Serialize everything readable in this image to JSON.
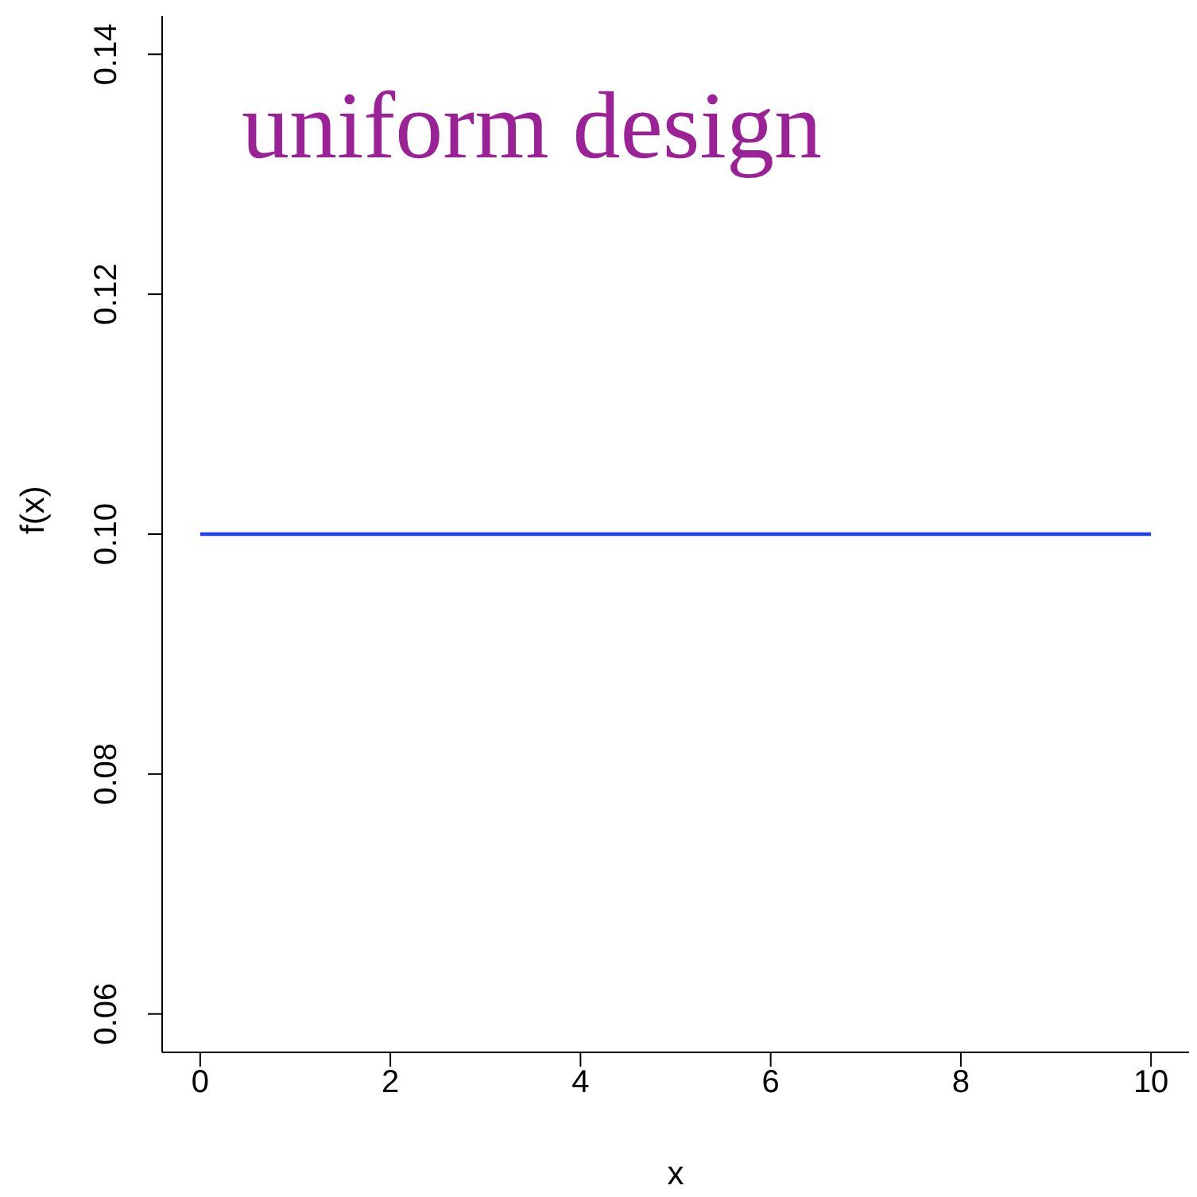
{
  "chart_data": {
    "type": "line",
    "xlabel": "x",
    "ylabel": "f(x)",
    "annotations": [
      "uniform design"
    ],
    "x": [
      0,
      10
    ],
    "series": [
      {
        "color": "#1f3ff0",
        "values": [
          0.1,
          0.1
        ]
      }
    ],
    "xlim": [
      -0.4,
      10.4
    ],
    "xticks": [
      0,
      2,
      4,
      6,
      8,
      10
    ],
    "ylim": [
      0.0568,
      0.1432
    ],
    "yticks": [
      0.06,
      0.08,
      {
        "value": 0.1,
        "label": "0.10"
      },
      0.12,
      0.14
    ],
    "grid": false,
    "legend": false,
    "marker": "none",
    "line_style": "solid"
  }
}
